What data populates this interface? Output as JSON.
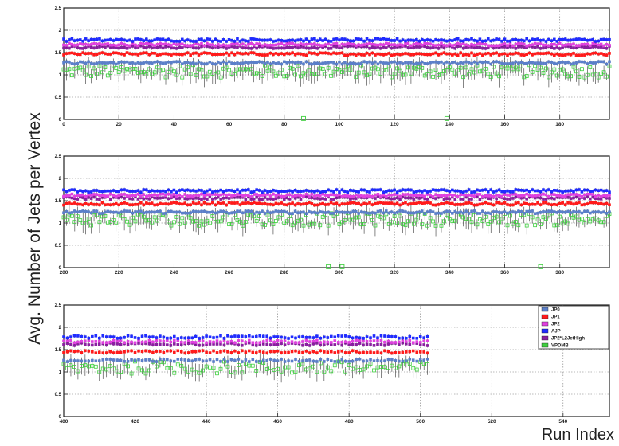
{
  "figure": {
    "ylabel": "Avg. Number of Jets per Vertex",
    "xlabel": "Run Index"
  },
  "legend": {
    "placement": "right of bottom panel",
    "entries": [
      {
        "name": "JP0",
        "color": "#5b7fc9"
      },
      {
        "name": "JP1",
        "color": "#ff1a1a"
      },
      {
        "name": "JP2",
        "color": "#e040e0"
      },
      {
        "name": "AJP",
        "color": "#1f2bff"
      },
      {
        "name": "JP2*L2JetHigh",
        "color": "#8a1fa0"
      },
      {
        "name": "VPDMB",
        "color": "#3fcf3f"
      }
    ]
  },
  "chart_data": [
    {
      "type": "scatter",
      "panel": "top",
      "xlim": [
        0,
        198
      ],
      "ylim": [
        0,
        2.5
      ],
      "xticks": [
        0,
        20,
        40,
        60,
        80,
        100,
        120,
        140,
        160,
        180
      ],
      "yticks": [
        0,
        0.5,
        1,
        1.5,
        2,
        2.5
      ],
      "grid": true,
      "x_range": [
        0,
        198
      ],
      "series": [
        {
          "name": "AJP",
          "level": 1.78
        },
        {
          "name": "JP2",
          "level": 1.68
        },
        {
          "name": "JP2*L2JetHigh",
          "level": 1.62
        },
        {
          "name": "JP1",
          "level": 1.47
        },
        {
          "name": "JP0",
          "level": 1.27
        },
        {
          "name": "VPDMB",
          "level": 1.08
        }
      ],
      "outliers": [
        {
          "series": "VPDMB",
          "x": 87,
          "y": 0.02
        },
        {
          "series": "VPDMB",
          "x": 139,
          "y": 0.02
        }
      ]
    },
    {
      "type": "scatter",
      "panel": "middle",
      "xlim": [
        200,
        398
      ],
      "ylim": [
        0,
        2.5
      ],
      "xticks": [
        200,
        220,
        240,
        260,
        280,
        300,
        320,
        340,
        360,
        380
      ],
      "yticks": [
        0,
        0.5,
        1,
        1.5,
        2,
        2.5
      ],
      "grid": true,
      "x_range": [
        200,
        398
      ],
      "series": [
        {
          "name": "AJP",
          "level": 1.72
        },
        {
          "name": "JP2",
          "level": 1.62
        },
        {
          "name": "JP2*L2JetHigh",
          "level": 1.56
        },
        {
          "name": "JP1",
          "level": 1.43
        },
        {
          "name": "JP0",
          "level": 1.24
        },
        {
          "name": "VPDMB",
          "level": 1.08
        }
      ],
      "outliers": [
        {
          "series": "VPDMB",
          "x": 296,
          "y": 0.02
        },
        {
          "series": "VPDMB",
          "x": 301,
          "y": 0.02
        },
        {
          "series": "VPDMB",
          "x": 373,
          "y": 0.02
        }
      ]
    },
    {
      "type": "scatter",
      "panel": "bottom",
      "xlim": [
        400,
        553
      ],
      "ylim": [
        0,
        2.5
      ],
      "xticks": [
        400,
        420,
        440,
        460,
        480,
        500,
        520,
        540
      ],
      "yticks": [
        0,
        0.5,
        1,
        1.5,
        2,
        2.5
      ],
      "grid": true,
      "x_range": [
        400,
        502
      ],
      "series": [
        {
          "name": "AJP",
          "level": 1.78
        },
        {
          "name": "JP2",
          "level": 1.68
        },
        {
          "name": "JP2*L2JetHigh",
          "level": 1.62
        },
        {
          "name": "JP1",
          "level": 1.45
        },
        {
          "name": "JP0",
          "level": 1.26
        },
        {
          "name": "VPDMB",
          "level": 1.1
        }
      ],
      "outliers": []
    }
  ]
}
